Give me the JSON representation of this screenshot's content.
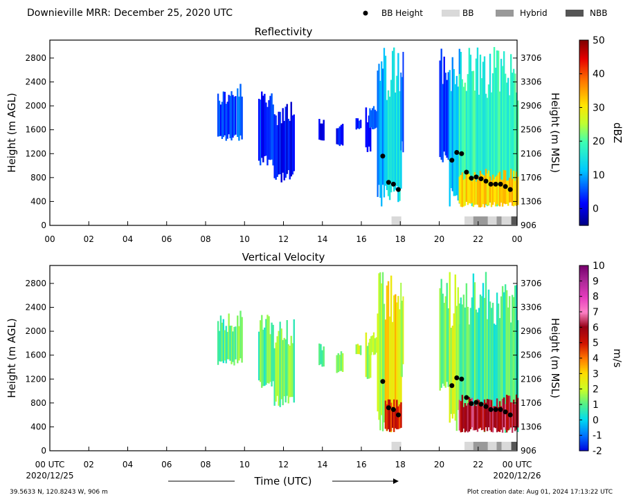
{
  "header": {
    "title": "Downieville MRR:  December 25, 2020 UTC"
  },
  "legend": {
    "items": [
      {
        "label": "BB Height",
        "kind": "dot",
        "color": "#000000"
      },
      {
        "label": "BB",
        "kind": "swatch",
        "color": "#d9d9d9"
      },
      {
        "label": "Hybrid",
        "kind": "swatch",
        "color": "#999999"
      },
      {
        "label": "NBB",
        "kind": "swatch",
        "color": "#555555"
      }
    ]
  },
  "footer": {
    "location": "39.5633 N, 120.8243 W, 906 m",
    "creation": "Plot creation date: Aug 01, 2024 17:13:22 UTC",
    "xlabel": "Time (UTC)",
    "start_label": "00 UTC",
    "start_date": "2020/12/25",
    "end_label": "00 UTC",
    "end_date": "2020/12/26"
  },
  "chart_data": [
    {
      "type": "heatmap",
      "title": "Reflectivity",
      "xlabel": "",
      "ylabel": "Height (m AGL)",
      "ylabel_right": "Height (m MSL)",
      "xlim": [
        0,
        24
      ],
      "ylim": [
        0,
        3100
      ],
      "x_ticks": [
        "00",
        "02",
        "04",
        "06",
        "08",
        "10",
        "12",
        "14",
        "16",
        "18",
        "20",
        "22",
        "00"
      ],
      "y_ticks": [
        0,
        400,
        800,
        1200,
        1600,
        2000,
        2400,
        2800
      ],
      "y_ticks_right": [
        "906",
        "1306",
        "1706",
        "2106",
        "2506",
        "2906",
        "3306",
        "3706"
      ],
      "colorbar": {
        "label": "dBZ",
        "min": -5,
        "max": 50,
        "ticks": [
          0,
          10,
          20,
          30,
          40,
          50
        ]
      },
      "grid": false,
      "bb_height": [
        {
          "time": 17.1,
          "height": 1160
        },
        {
          "time": 17.4,
          "height": 720
        },
        {
          "time": 17.65,
          "height": 690
        },
        {
          "time": 17.9,
          "height": 600
        },
        {
          "time": 20.65,
          "height": 1090
        },
        {
          "time": 20.9,
          "height": 1220
        },
        {
          "time": 21.15,
          "height": 1200
        },
        {
          "time": 21.4,
          "height": 890
        },
        {
          "time": 21.65,
          "height": 790
        },
        {
          "time": 21.9,
          "height": 810
        },
        {
          "time": 22.15,
          "height": 780
        },
        {
          "time": 22.4,
          "height": 740
        },
        {
          "time": 22.65,
          "height": 690
        },
        {
          "time": 22.9,
          "height": 690
        },
        {
          "time": 23.15,
          "height": 690
        },
        {
          "time": 23.4,
          "height": 650
        },
        {
          "time": 23.65,
          "height": 600
        }
      ],
      "bb_class": [
        {
          "start": 17.55,
          "end": 18.05,
          "class": "BB"
        },
        {
          "start": 21.3,
          "end": 21.75,
          "class": "BB"
        },
        {
          "start": 21.75,
          "end": 22.5,
          "class": "Hybrid"
        },
        {
          "start": 22.5,
          "end": 22.95,
          "class": "BB"
        },
        {
          "start": 22.95,
          "end": 23.2,
          "class": "Hybrid"
        },
        {
          "start": 23.2,
          "end": 23.7,
          "class": "BB"
        },
        {
          "start": 23.7,
          "end": 24.0,
          "class": "NBB"
        }
      ],
      "echoes": [
        {
          "t0": 8.6,
          "t1": 9.5,
          "h0": 1400,
          "h1": 2300,
          "v": 4
        },
        {
          "t0": 9.6,
          "t1": 9.9,
          "h0": 1400,
          "h1": 2400,
          "v": 6
        },
        {
          "t0": 10.7,
          "t1": 11.5,
          "h0": 1000,
          "h1": 2300,
          "v": 3
        },
        {
          "t0": 11.5,
          "t1": 12.5,
          "h0": 700,
          "h1": 2200,
          "v": 2
        },
        {
          "t0": 13.8,
          "t1": 14.1,
          "h0": 1400,
          "h1": 1800,
          "v": 1
        },
        {
          "t0": 14.7,
          "t1": 15.0,
          "h0": 1300,
          "h1": 1700,
          "v": 2
        },
        {
          "t0": 15.7,
          "t1": 16.0,
          "h0": 1600,
          "h1": 1800,
          "v": 4
        },
        {
          "t0": 16.2,
          "t1": 16.5,
          "h0": 1200,
          "h1": 2000,
          "v": 3
        },
        {
          "t0": 16.4,
          "t1": 16.8,
          "h0": 1600,
          "h1": 2000,
          "v": 5
        },
        {
          "t0": 16.8,
          "t1": 17.2,
          "h0": 300,
          "h1": 3000,
          "v": 8
        },
        {
          "t0": 17.2,
          "t1": 18.0,
          "h0": 300,
          "h1": 3000,
          "v": 14
        },
        {
          "t0": 18.0,
          "t1": 18.15,
          "h0": 1200,
          "h1": 3000,
          "v": 6
        },
        {
          "t0": 20.0,
          "t1": 20.5,
          "h0": 1000,
          "h1": 3000,
          "v": 5
        },
        {
          "t0": 20.5,
          "t1": 21.0,
          "h0": 300,
          "h1": 3000,
          "v": 10
        },
        {
          "t0": 21.0,
          "t1": 24.0,
          "h0": 300,
          "h1": 3000,
          "v": 18
        },
        {
          "t0": 21.0,
          "t1": 24.0,
          "h0": 300,
          "h1": 950,
          "v": 32
        }
      ]
    },
    {
      "type": "heatmap",
      "title": "Vertical Velocity",
      "xlabel": "",
      "ylabel": "Height (m AGL)",
      "ylabel_right": "Height (m MSL)",
      "xlim": [
        0,
        24
      ],
      "ylim": [
        0,
        3100
      ],
      "x_ticks": [
        "",
        "02",
        "04",
        "06",
        "08",
        "10",
        "12",
        "14",
        "16",
        "18",
        "20",
        "22",
        ""
      ],
      "y_ticks": [
        0,
        400,
        800,
        1200,
        1600,
        2000,
        2400,
        2800
      ],
      "y_ticks_right": [
        "906",
        "1306",
        "1706",
        "2106",
        "2506",
        "2906",
        "3306",
        "3706"
      ],
      "colorbar": {
        "label": "m/s",
        "min": -2,
        "max": 10,
        "ticks": [
          -2,
          -1,
          0,
          1,
          2,
          3,
          4,
          5,
          6,
          7,
          8,
          9,
          10
        ]
      },
      "grid": false,
      "bb_height": [
        {
          "time": 17.1,
          "height": 1160
        },
        {
          "time": 17.4,
          "height": 720
        },
        {
          "time": 17.65,
          "height": 690
        },
        {
          "time": 17.9,
          "height": 600
        },
        {
          "time": 20.65,
          "height": 1090
        },
        {
          "time": 20.9,
          "height": 1220
        },
        {
          "time": 21.15,
          "height": 1200
        },
        {
          "time": 21.4,
          "height": 890
        },
        {
          "time": 21.65,
          "height": 790
        },
        {
          "time": 21.9,
          "height": 810
        },
        {
          "time": 22.15,
          "height": 780
        },
        {
          "time": 22.4,
          "height": 740
        },
        {
          "time": 22.65,
          "height": 690
        },
        {
          "time": 22.9,
          "height": 690
        },
        {
          "time": 23.15,
          "height": 690
        },
        {
          "time": 23.4,
          "height": 650
        },
        {
          "time": 23.65,
          "height": 600
        }
      ],
      "bb_class": [
        {
          "start": 17.55,
          "end": 18.05,
          "class": "BB"
        },
        {
          "start": 21.3,
          "end": 21.75,
          "class": "BB"
        },
        {
          "start": 21.75,
          "end": 22.5,
          "class": "Hybrid"
        },
        {
          "start": 22.5,
          "end": 22.95,
          "class": "BB"
        },
        {
          "start": 22.95,
          "end": 23.2,
          "class": "Hybrid"
        },
        {
          "start": 23.2,
          "end": 23.7,
          "class": "BB"
        },
        {
          "start": 23.7,
          "end": 24.0,
          "class": "NBB"
        }
      ],
      "echoes": [
        {
          "t0": 8.6,
          "t1": 9.5,
          "h0": 1400,
          "h1": 2300,
          "v": 1.0
        },
        {
          "t0": 9.6,
          "t1": 9.9,
          "h0": 1400,
          "h1": 2400,
          "v": 1.2
        },
        {
          "t0": 10.7,
          "t1": 11.5,
          "h0": 1000,
          "h1": 2300,
          "v": 1.0
        },
        {
          "t0": 11.5,
          "t1": 12.5,
          "h0": 700,
          "h1": 2200,
          "v": 1.3
        },
        {
          "t0": 13.8,
          "t1": 14.1,
          "h0": 1400,
          "h1": 1800,
          "v": 1.1
        },
        {
          "t0": 14.7,
          "t1": 15.0,
          "h0": 1300,
          "h1": 1700,
          "v": 1.6
        },
        {
          "t0": 15.7,
          "t1": 16.0,
          "h0": 1600,
          "h1": 1800,
          "v": 1.8
        },
        {
          "t0": 16.2,
          "t1": 16.5,
          "h0": 1200,
          "h1": 2000,
          "v": 1.8
        },
        {
          "t0": 16.4,
          "t1": 16.8,
          "h0": 1600,
          "h1": 2000,
          "v": 1.8
        },
        {
          "t0": 16.8,
          "t1": 17.2,
          "h0": 300,
          "h1": 3000,
          "v": 2.0
        },
        {
          "t0": 17.2,
          "t1": 18.0,
          "h0": 300,
          "h1": 3000,
          "v": 3.0
        },
        {
          "t0": 17.2,
          "t1": 18.0,
          "h0": 300,
          "h1": 900,
          "v": 5.0
        },
        {
          "t0": 18.0,
          "t1": 18.15,
          "h0": 1200,
          "h1": 3000,
          "v": 2.0
        },
        {
          "t0": 20.0,
          "t1": 20.5,
          "h0": 1000,
          "h1": 3000,
          "v": 1.5
        },
        {
          "t0": 20.5,
          "t1": 21.0,
          "h0": 300,
          "h1": 3000,
          "v": 1.8
        },
        {
          "t0": 21.0,
          "t1": 24.0,
          "h0": 300,
          "h1": 3000,
          "v": 0.8
        },
        {
          "t0": 21.0,
          "t1": 24.0,
          "h0": 300,
          "h1": 950,
          "v": 6.0
        }
      ]
    }
  ]
}
